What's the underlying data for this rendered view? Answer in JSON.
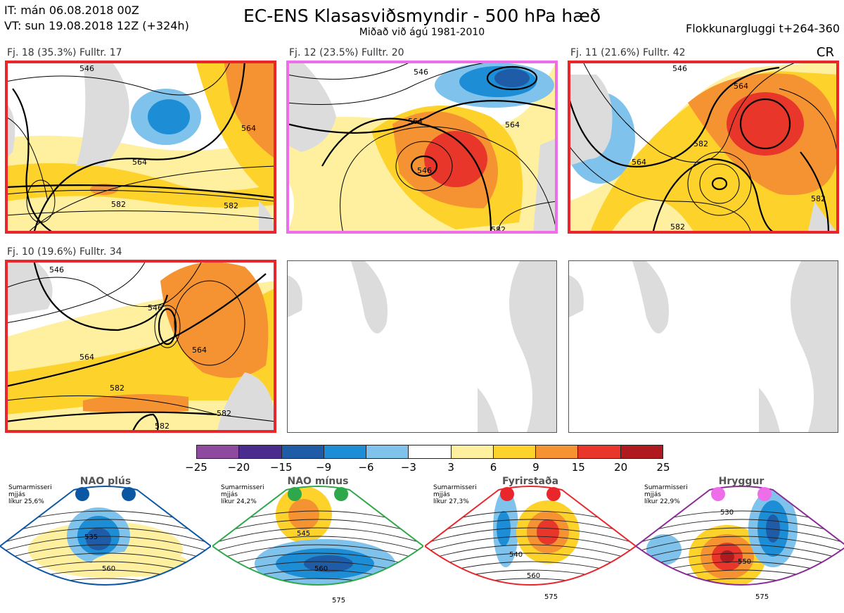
{
  "header": {
    "init_time": "IT: mán 06.08.2018 00Z",
    "valid_time": "VT: sun 19.08.2018 12Z  (+324h)",
    "title": "EC-ENS Klasasviðsmyndir - 500 hPa hæð",
    "subtitle": "Miðað við ágú 1981-2010",
    "window": "Flokkunargluggi t+264-360",
    "code": "CR"
  },
  "panels": [
    {
      "label": "Fj. 18 (35.3%)   Fulltr. 17",
      "frame_color": "#e8262b",
      "regime": "Fyrirstaða",
      "contour_labels": [
        "546",
        "564",
        "564",
        "582",
        "582"
      ]
    },
    {
      "label": "Fj. 12 (23.5%)   Fulltr. 20",
      "frame_color": "#ee6ee9",
      "regime": "Hryggur",
      "contour_labels": [
        "546",
        "564",
        "564",
        "546",
        "582"
      ]
    },
    {
      "label": "Fj. 11 (21.6%)   Fulltr. 42",
      "frame_color": "#e8262b",
      "regime": "Fyrirstaða",
      "contour_labels": [
        "546",
        "564",
        "564",
        "582",
        "582",
        "582"
      ]
    },
    {
      "label": "Fj. 10 (19.6%)   Fulltr. 34",
      "frame_color": "#e8262b",
      "regime": "Fyrirstaða",
      "contour_labels": [
        "546",
        "546",
        "564",
        "582",
        "564",
        "582",
        "582"
      ]
    }
  ],
  "colorbar": {
    "ticks": [
      "−25",
      "−20",
      "−15",
      "−9",
      "−6",
      "−3",
      "3",
      "6",
      "9",
      "15",
      "20",
      "25"
    ],
    "colors": [
      "#8e4a9e",
      "#4a2c8f",
      "#1f5ca8",
      "#1d8ed6",
      "#7fc3ec",
      "#ffffff",
      "#fff0a0",
      "#fdd22a",
      "#f59332",
      "#e8362b",
      "#b0191e"
    ]
  },
  "regimes": [
    {
      "name": "NAO plús",
      "season": "Sumarmisseri",
      "smoothing": "mjjás",
      "likelihood": "líkur 25,6%",
      "color": "#0b57a4",
      "dot_color": "#0b57a4",
      "labels": [
        "535",
        "560"
      ]
    },
    {
      "name": "NAO mínus",
      "season": "Sumarmisseri",
      "smoothing": "mjjás",
      "likelihood": "líkur 24,2%",
      "color": "#2ea84a",
      "dot_color": "#2ea84a",
      "labels": [
        "545",
        "560",
        "575"
      ]
    },
    {
      "name": "Fyrirstaða",
      "season": "Sumarmisseri",
      "smoothing": "mjjás",
      "likelihood": "líkur 27,3%",
      "color": "#e8262b",
      "dot_color": "#e8262b",
      "labels": [
        "540",
        "560",
        "575"
      ]
    },
    {
      "name": "Hryggur",
      "season": "Sumarmisseri",
      "smoothing": "mjjás",
      "likelihood": "líkur 22,9%",
      "color": "#8a2a96",
      "dot_color": "#ee6ee9",
      "labels": [
        "530",
        "550",
        "575"
      ]
    }
  ]
}
